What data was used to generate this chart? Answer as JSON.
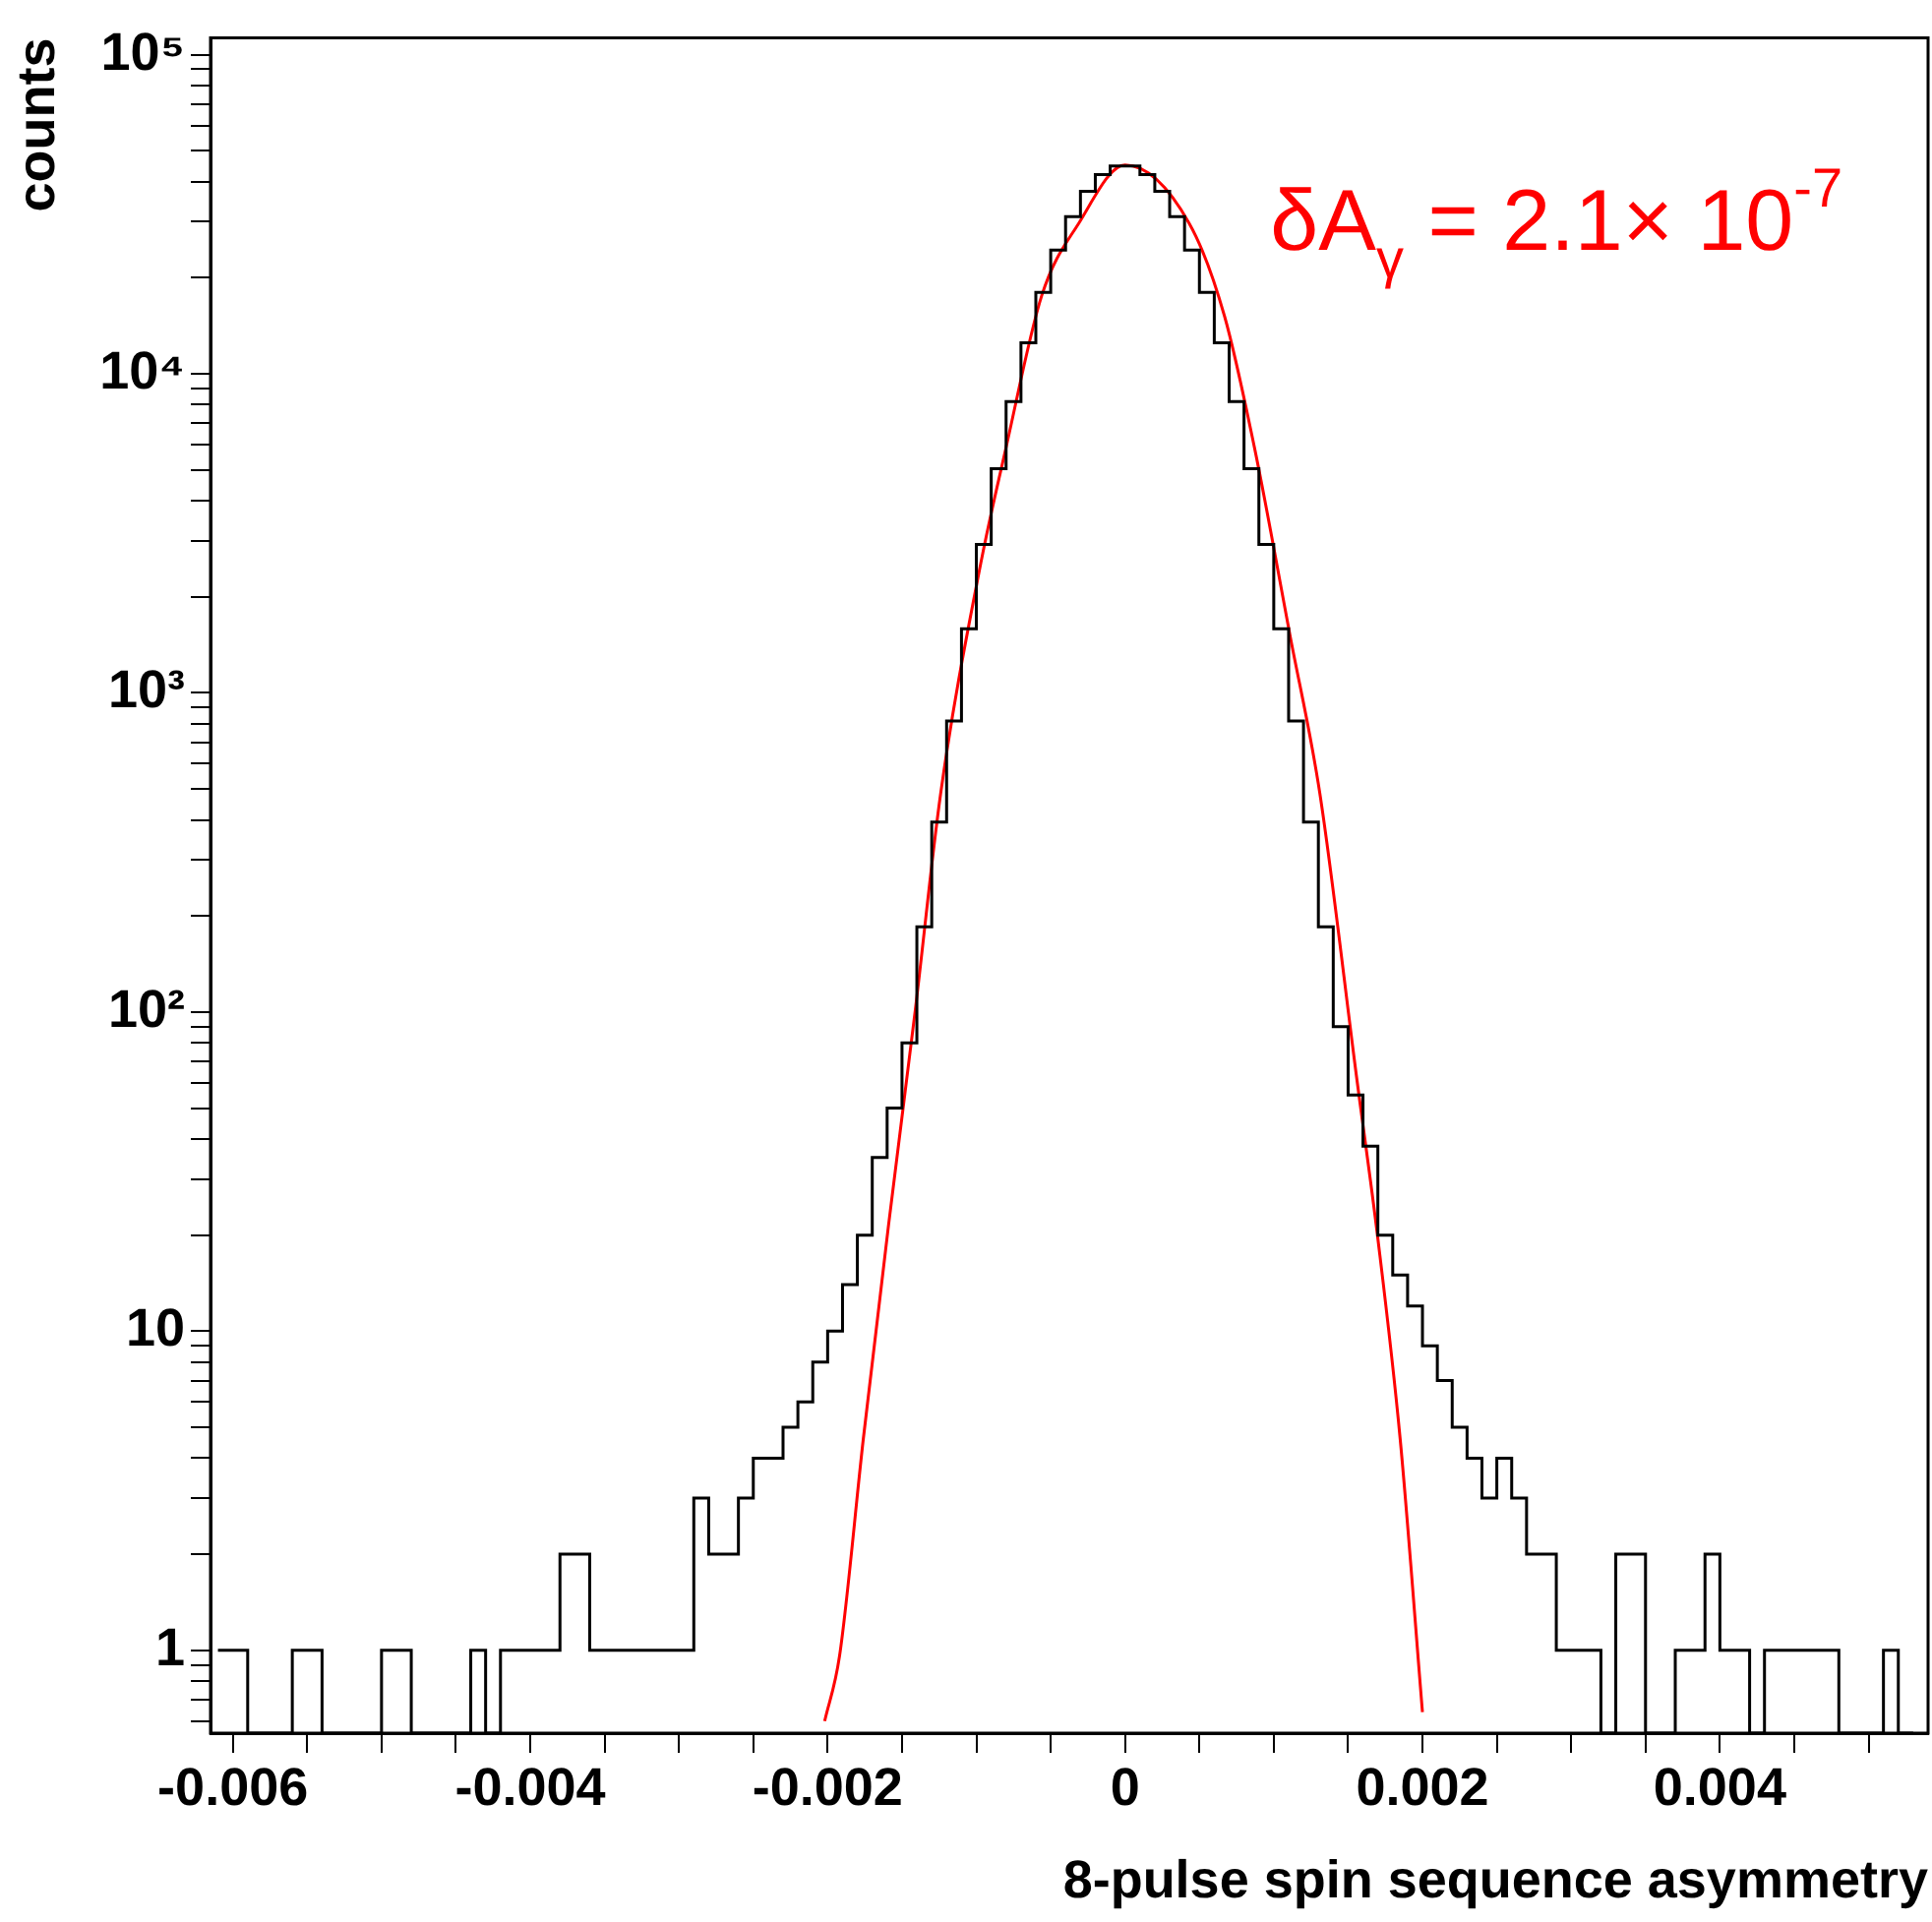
{
  "chart_data": {
    "type": "histogram",
    "xlabel": "8-pulse spin sequence asymmetry",
    "ylabel": "counts",
    "annotations": [
      "δA$_{γ}$ = 2.1× 10$^{-7}$"
    ],
    "log": "y",
    "grid": false,
    "xlim": [
      -0.00615,
      0.0054
    ],
    "ylim": [
      0.55,
      113000
    ],
    "xticks": [
      -0.006,
      {
        "value": -0.0055,
        "label": null
      },
      {
        "value": -0.005,
        "label": null
      },
      {
        "value": -0.0045,
        "label": null
      },
      -0.004,
      {
        "value": -0.0035,
        "label": null
      },
      {
        "value": -0.003,
        "label": null
      },
      {
        "value": -0.0025,
        "label": null
      },
      -0.002,
      {
        "value": -0.0015,
        "label": null
      },
      {
        "value": -0.001,
        "label": null
      },
      {
        "value": -0.0005,
        "label": null
      },
      0,
      {
        "value": 0.0005,
        "label": null
      },
      {
        "value": 0.001,
        "label": null
      },
      {
        "value": 0.0015,
        "label": null
      },
      0.002,
      {
        "value": 0.0025,
        "label": null
      },
      {
        "value": 0.003,
        "label": null
      },
      {
        "value": 0.0035,
        "label": null
      },
      0.004,
      {
        "value": 0.0045,
        "label": null
      },
      {
        "value": 0.005,
        "label": null
      }
    ],
    "yticks": [
      {
        "value": 0.6,
        "label": null
      },
      {
        "value": 0.7,
        "label": null
      },
      {
        "value": 0.8,
        "label": null
      },
      {
        "value": 0.9,
        "label": null
      },
      1,
      {
        "value": 2,
        "label": null
      },
      {
        "value": 3,
        "label": null
      },
      {
        "value": 4,
        "label": null
      },
      {
        "value": 5,
        "label": null
      },
      {
        "value": 6,
        "label": null
      },
      {
        "value": 7,
        "label": null
      },
      {
        "value": 8,
        "label": null
      },
      {
        "value": 9,
        "label": null
      },
      10,
      {
        "value": 20,
        "label": null
      },
      {
        "value": 30,
        "label": null
      },
      {
        "value": 40,
        "label": null
      },
      {
        "value": 50,
        "label": null
      },
      {
        "value": 60,
        "label": null
      },
      {
        "value": 70,
        "label": null
      },
      {
        "value": 80,
        "label": null
      },
      {
        "value": 90,
        "label": null
      },
      {
        "value": 100,
        "label": "10²"
      },
      {
        "value": 200,
        "label": null
      },
      {
        "value": 300,
        "label": null
      },
      {
        "value": 400,
        "label": null
      },
      {
        "value": 500,
        "label": null
      },
      {
        "value": 600,
        "label": null
      },
      {
        "value": 700,
        "label": null
      },
      {
        "value": 800,
        "label": null
      },
      {
        "value": 900,
        "label": null
      },
      {
        "value": 1000,
        "label": "10³"
      },
      {
        "value": 2000,
        "label": null
      },
      {
        "value": 3000,
        "label": null
      },
      {
        "value": 4000,
        "label": null
      },
      {
        "value": 5000,
        "label": null
      },
      {
        "value": 6000,
        "label": null
      },
      {
        "value": 7000,
        "label": null
      },
      {
        "value": 8000,
        "label": null
      },
      {
        "value": 9000,
        "label": null
      },
      {
        "value": 10000,
        "label": "10⁴"
      },
      {
        "value": 20000,
        "label": null
      },
      {
        "value": 30000,
        "label": null
      },
      {
        "value": 40000,
        "label": null
      },
      {
        "value": 50000,
        "label": null
      },
      {
        "value": 60000,
        "label": null
      },
      {
        "value": 70000,
        "label": null
      },
      {
        "value": 80000,
        "label": null
      },
      {
        "value": 90000,
        "label": null
      },
      {
        "value": 100000,
        "label": "10⁵"
      }
    ],
    "series": [
      {
        "color": "#000000",
        "bins": [
          -0.0061,
          -0.006,
          -0.0059,
          -0.0058,
          -0.0057,
          -0.0056,
          -0.0055,
          -0.0054,
          -0.0053,
          -0.0052,
          -0.0051,
          -0.005,
          -0.0049,
          -0.0048,
          -0.0047,
          -0.0046,
          -0.0045,
          -0.0044,
          -0.0043,
          -0.0042,
          -0.0041,
          -0.004,
          -0.0039,
          -0.0038,
          -0.0037,
          -0.0036,
          -0.0035,
          -0.0034,
          -0.0033,
          -0.0032,
          -0.0031,
          -0.003,
          -0.0029,
          -0.0028,
          -0.0027,
          -0.0026,
          -0.0025,
          -0.0024,
          -0.0023,
          -0.0022,
          -0.0021,
          -0.002,
          -0.0019,
          -0.0018,
          -0.0017,
          -0.0016,
          -0.0015,
          -0.0014,
          -0.0013,
          -0.0012,
          -0.0011,
          -0.001,
          -0.0009,
          -0.0008,
          -0.0007,
          -0.0006,
          -0.0005,
          -0.0004,
          -0.0003,
          -0.0002,
          -0.0001,
          0,
          0.0001,
          0.0002,
          0.0003,
          0.0004,
          0.0005,
          0.0006,
          0.0007,
          0.0008,
          0.0009,
          0.001,
          0.0011,
          0.0012,
          0.0013,
          0.0014,
          0.0015,
          0.0016,
          0.0017,
          0.0018,
          0.0019,
          0.002,
          0.0021,
          0.0022,
          0.0023,
          0.0024,
          0.0025,
          0.0026,
          0.0027,
          0.0028,
          0.0029,
          0.003,
          0.0031,
          0.0032,
          0.0033,
          0.0034,
          0.0035,
          0.0036,
          0.0037,
          0.0038,
          0.0039,
          0.004,
          0.0041,
          0.0042,
          0.0043,
          0.0044,
          0.0045,
          0.0046,
          0.0047,
          0.0048,
          0.0049,
          0.005,
          0.0051,
          0.0052,
          0.0053
        ],
        "values": [
          1,
          1,
          null,
          null,
          null,
          1,
          1,
          null,
          null,
          null,
          null,
          1,
          1,
          null,
          null,
          null,
          null,
          1,
          null,
          1,
          1,
          1,
          1,
          2,
          2,
          1,
          1,
          1,
          1,
          1,
          1,
          1,
          3,
          2,
          2,
          3,
          4,
          4,
          5,
          6,
          8,
          10,
          14,
          20,
          35,
          50,
          80,
          185,
          394,
          817,
          1590,
          2920,
          5040,
          8180,
          12500,
          18000,
          24400,
          31100,
          37300,
          42100,
          44800,
          44800,
          42100,
          37300,
          31100,
          24400,
          18000,
          12500,
          8180,
          5040,
          2920,
          1590,
          817,
          394,
          185,
          90,
          55,
          38,
          20,
          15,
          12,
          9,
          7,
          5,
          4,
          3,
          4,
          3,
          2,
          2,
          1,
          1,
          1,
          null,
          2,
          2,
          null,
          null,
          1,
          1,
          2,
          1,
          1,
          null,
          1,
          1,
          1,
          1,
          1,
          null,
          null,
          null,
          1,
          null
        ]
      },
      {
        "type": "line",
        "color": "#ff0000",
        "x": [
          -0.00202,
          -0.00192,
          -0.00176,
          -0.00159,
          -0.00141,
          -0.00124,
          -0.00097,
          -0.0008,
          -0.00056,
          -0.00031,
          0,
          0.00043,
          0.00067,
          0.00087,
          0.00111,
          0.00131,
          0.00156,
          0.0017,
          0.00185,
          0.002
        ],
        "values": [
          0.6,
          0.96,
          4.6,
          21.6,
          102,
          484,
          2550,
          5880,
          17600,
          29700,
          45100,
          29700,
          15100,
          5880,
          1510,
          484,
          61,
          19.5,
          4.6,
          0.64
        ]
      }
    ]
  }
}
